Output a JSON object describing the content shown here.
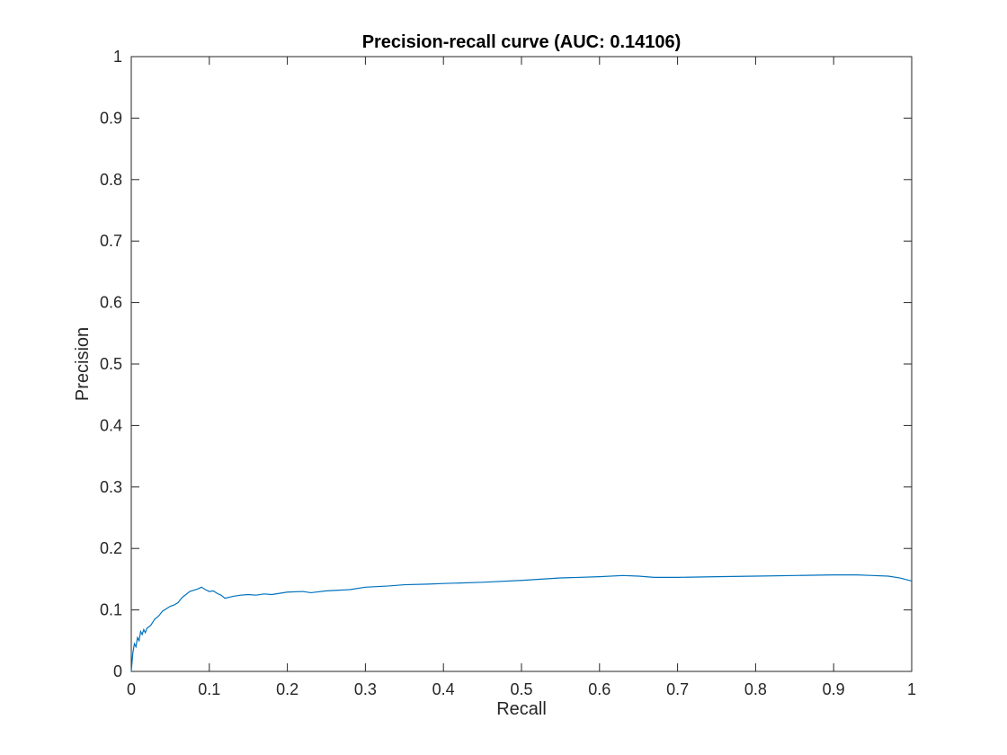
{
  "chart_data": {
    "type": "line",
    "title": "Precision-recall curve (AUC: 0.14106)",
    "xlabel": "Recall",
    "ylabel": "Precision",
    "xlim": [
      0,
      1
    ],
    "ylim": [
      0,
      1
    ],
    "xticks": [
      "0",
      "0.1",
      "0.2",
      "0.3",
      "0.4",
      "0.5",
      "0.6",
      "0.7",
      "0.8",
      "0.9",
      "1"
    ],
    "yticks": [
      "0",
      "0.1",
      "0.2",
      "0.3",
      "0.4",
      "0.5",
      "0.6",
      "0.7",
      "0.8",
      "0.9",
      "1"
    ],
    "grid": false,
    "series": [
      {
        "color": "#0072BD",
        "x": [
          0.0,
          0.002,
          0.004,
          0.006,
          0.008,
          0.01,
          0.012,
          0.014,
          0.016,
          0.018,
          0.02,
          0.025,
          0.03,
          0.035,
          0.04,
          0.045,
          0.05,
          0.055,
          0.06,
          0.065,
          0.07,
          0.075,
          0.08,
          0.085,
          0.09,
          0.095,
          0.1,
          0.105,
          0.11,
          0.115,
          0.12,
          0.13,
          0.14,
          0.15,
          0.16,
          0.17,
          0.18,
          0.2,
          0.22,
          0.23,
          0.25,
          0.28,
          0.3,
          0.33,
          0.35,
          0.38,
          0.4,
          0.45,
          0.5,
          0.55,
          0.6,
          0.63,
          0.65,
          0.67,
          0.7,
          0.75,
          0.8,
          0.85,
          0.9,
          0.93,
          0.95,
          0.97,
          0.985,
          1.0
        ],
        "y": [
          0.0,
          0.03,
          0.045,
          0.04,
          0.055,
          0.05,
          0.065,
          0.06,
          0.068,
          0.063,
          0.07,
          0.075,
          0.085,
          0.09,
          0.098,
          0.102,
          0.106,
          0.108,
          0.112,
          0.12,
          0.125,
          0.13,
          0.132,
          0.134,
          0.137,
          0.133,
          0.13,
          0.131,
          0.127,
          0.124,
          0.119,
          0.122,
          0.124,
          0.125,
          0.124,
          0.126,
          0.125,
          0.129,
          0.13,
          0.128,
          0.131,
          0.133,
          0.137,
          0.139,
          0.141,
          0.142,
          0.143,
          0.145,
          0.148,
          0.152,
          0.154,
          0.156,
          0.155,
          0.153,
          0.153,
          0.154,
          0.155,
          0.156,
          0.157,
          0.157,
          0.156,
          0.155,
          0.152,
          0.147
        ]
      }
    ]
  }
}
